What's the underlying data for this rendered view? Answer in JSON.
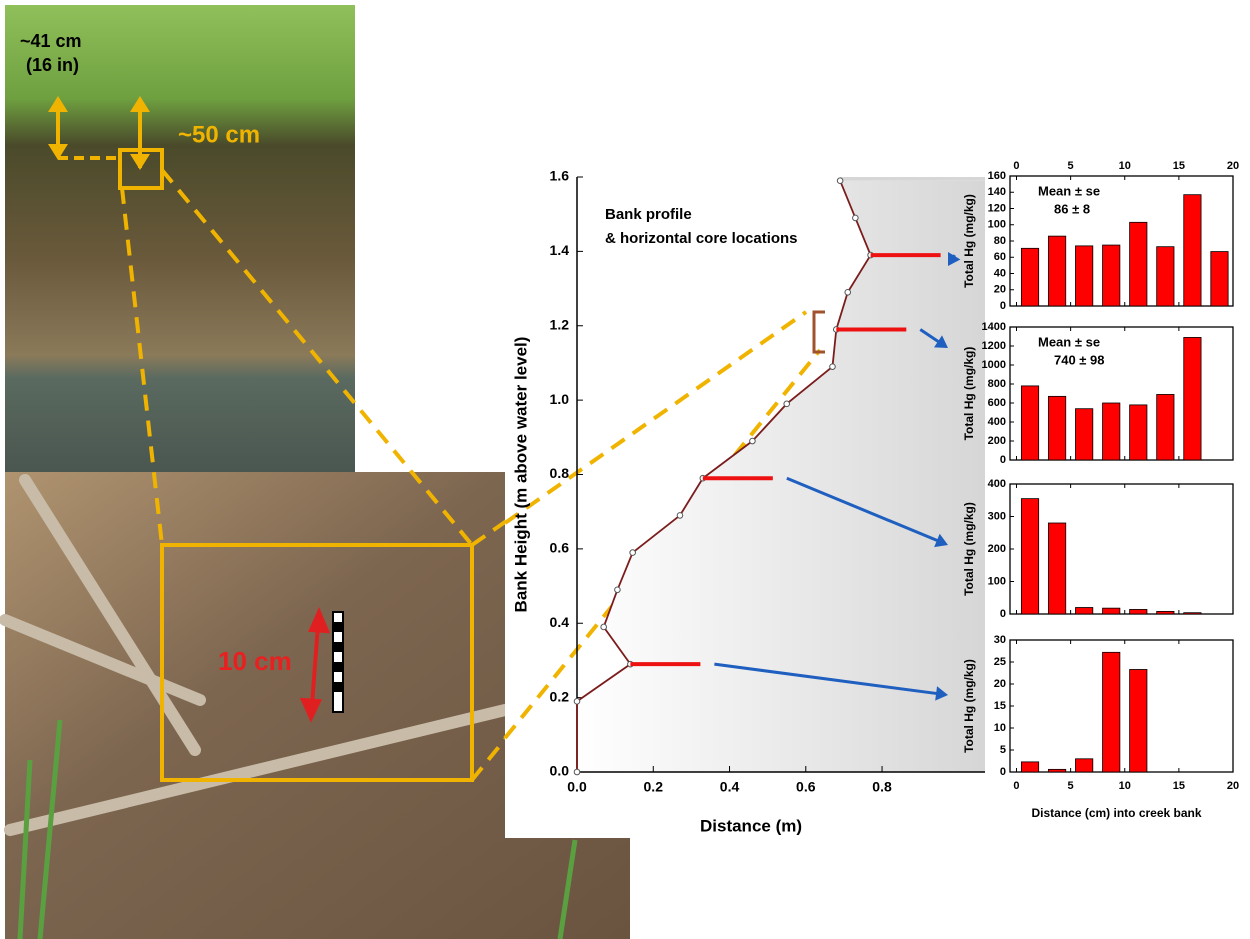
{
  "annotations": {
    "top_height": "~41 cm",
    "top_height_in": "(16 in)",
    "depth": "~50 cm",
    "scale": "10 cm"
  },
  "chart_data": [
    {
      "type": "line",
      "title": "Bank profile",
      "subtitle": "& horizontal core locations",
      "x_label": "Distance (m)",
      "y_label": "Bank Height (m above water level)",
      "x": [
        0,
        0,
        0.14,
        0.07,
        0.106,
        0.146,
        0.27,
        0.33,
        0.46,
        0.55,
        0.67,
        0.68,
        0.71,
        0.77,
        0.73,
        0.69
      ],
      "values": [
        0,
        0.19,
        0.29,
        0.39,
        0.49,
        0.59,
        0.69,
        0.79,
        0.89,
        0.99,
        1.09,
        1.19,
        1.29,
        1.39,
        1.49,
        1.59
      ],
      "color": "#7b1c1c",
      "cores": [
        0.29,
        0.79,
        1.19,
        1.39
      ],
      "core_color": "#ee1111",
      "arrow_color": "#1f5fc0",
      "xlim": [
        0,
        1.07
      ],
      "ylim": [
        0,
        1.6
      ],
      "xticks": [
        {
          "value": 0,
          "label": "0.0"
        },
        0.2,
        0.4,
        0.6,
        0.8
      ],
      "yticks": [
        {
          "value": 0,
          "label": "0.0"
        },
        0.2,
        0.4,
        0.6,
        0.8,
        {
          "value": 1,
          "label": "1.0"
        },
        1.2,
        1.4,
        1.6
      ]
    },
    {
      "type": "bar",
      "y_label": "Total Hg (mg/kg)",
      "annotation": [
        "Mean ± se",
        "86 ± 8"
      ],
      "x_tick_side": "top",
      "x": [
        1.25,
        3.75,
        6.25,
        8.75,
        11.25,
        13.75,
        16.25,
        18.75
      ],
      "values": [
        71,
        86,
        74,
        75,
        103,
        73,
        137,
        67
      ],
      "color": "#ff0000",
      "xlim": [
        -0.6,
        20
      ],
      "ylim": [
        0,
        160
      ],
      "xticks": [
        0,
        5,
        10,
        15,
        20
      ],
      "yticks": [
        0,
        20,
        40,
        60,
        80,
        100,
        120,
        140,
        160
      ]
    },
    {
      "type": "bar",
      "y_label": "Total Hg (mg/kg)",
      "annotation": [
        "Mean ± se",
        "740 ± 98"
      ],
      "x": [
        1.25,
        3.75,
        6.25,
        8.75,
        11.25,
        13.75,
        16.25
      ],
      "values": [
        780,
        670,
        540,
        600,
        580,
        690,
        1290
      ],
      "color": "#ff0000",
      "xlim": [
        -0.6,
        20
      ],
      "ylim": [
        0,
        1400
      ],
      "xticks": [
        0,
        5,
        10,
        15,
        20
      ],
      "yticks": [
        0,
        200,
        400,
        600,
        800,
        1000,
        1200,
        1400
      ]
    },
    {
      "type": "bar",
      "y_label": "Total Hg (mg/kg)",
      "x": [
        1.25,
        3.75,
        6.25,
        8.75,
        11.25,
        13.75,
        16.25
      ],
      "values": [
        355,
        280,
        20,
        18,
        14,
        8,
        4
      ],
      "color": "#ff0000",
      "xlim": [
        -0.6,
        20
      ],
      "ylim": [
        0,
        400
      ],
      "xticks": [
        0,
        5,
        10,
        15,
        20
      ],
      "yticks": [
        0,
        100,
        200,
        300,
        400
      ]
    },
    {
      "type": "bar",
      "y_label": "Total Hg (mg/kg)",
      "x_label": "Distance (cm) into creek bank",
      "x_tick_side": "bottom",
      "x": [
        1.25,
        3.75,
        6.25,
        8.75,
        11.25
      ],
      "values": [
        2.3,
        0.6,
        3,
        27.2,
        23.3
      ],
      "color": "#ff0000",
      "xlim": [
        -0.6,
        20
      ],
      "ylim": [
        0,
        30
      ],
      "xticks": [
        0,
        5,
        10,
        15,
        20
      ],
      "yticks": [
        0,
        5,
        10,
        15,
        20,
        25,
        30
      ]
    }
  ]
}
